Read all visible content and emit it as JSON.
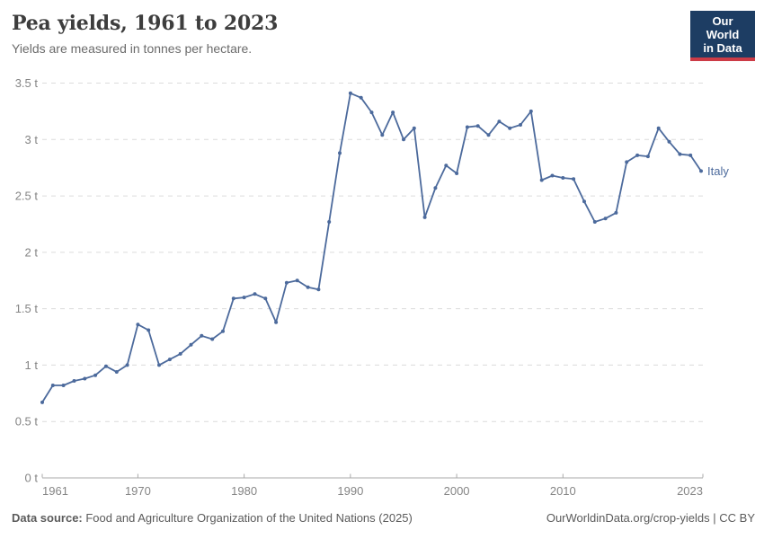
{
  "header": {
    "title": "Pea yields, 1961 to 2023",
    "subtitle": "Yields are measured in tonnes per hectare."
  },
  "logo": {
    "line1": "Our World",
    "line2": "in Data",
    "bg_color": "#1d3d63",
    "accent_color": "#cc3b46"
  },
  "chart_data": {
    "type": "line",
    "title": "Pea yields, 1961 to 2023",
    "ylabel": "tonnes per hectare",
    "unit": "t",
    "xlim": [
      1961,
      2023
    ],
    "ylim": [
      0,
      3.5
    ],
    "grid": "horizontal-dashed",
    "legend_position": "line-end-label",
    "x_ticks": [
      1961,
      1970,
      1980,
      1990,
      2000,
      2010,
      2023
    ],
    "y_ticks": [
      {
        "value": 0,
        "label": "0 t"
      },
      {
        "value": 0.5,
        "label": "0.5 t"
      },
      {
        "value": 1,
        "label": "1 t"
      },
      {
        "value": 1.5,
        "label": "1.5 t"
      },
      {
        "value": 2,
        "label": "2 t"
      },
      {
        "value": 2.5,
        "label": "2.5 t"
      },
      {
        "value": 3,
        "label": "3 t"
      },
      {
        "value": 3.5,
        "label": "3.5 t"
      }
    ],
    "series": [
      {
        "name": "Italy",
        "color": "#4C6A9C",
        "x": [
          1961,
          1962,
          1963,
          1964,
          1965,
          1966,
          1967,
          1968,
          1969,
          1970,
          1971,
          1972,
          1973,
          1974,
          1975,
          1976,
          1977,
          1978,
          1979,
          1980,
          1981,
          1982,
          1983,
          1984,
          1985,
          1986,
          1987,
          1988,
          1989,
          1990,
          1991,
          1992,
          1993,
          1994,
          1995,
          1996,
          1997,
          1998,
          1999,
          2000,
          2001,
          2002,
          2003,
          2004,
          2005,
          2006,
          2007,
          2008,
          2009,
          2010,
          2011,
          2012,
          2013,
          2014,
          2015,
          2016,
          2017,
          2018,
          2019,
          2020,
          2021,
          2022,
          2023
        ],
        "values": [
          0.67,
          0.82,
          0.82,
          0.86,
          0.88,
          0.91,
          0.99,
          0.94,
          1.0,
          1.36,
          1.31,
          1.0,
          1.05,
          1.1,
          1.18,
          1.26,
          1.23,
          1.3,
          1.59,
          1.6,
          1.63,
          1.59,
          1.38,
          1.73,
          1.75,
          1.69,
          1.67,
          2.27,
          2.88,
          3.41,
          3.37,
          3.24,
          3.04,
          3.24,
          3.0,
          3.1,
          2.31,
          2.57,
          2.77,
          2.7,
          3.11,
          3.12,
          3.04,
          3.16,
          3.1,
          3.13,
          3.25,
          2.64,
          2.68,
          2.66,
          2.65,
          2.45,
          2.27,
          2.3,
          2.35,
          2.8,
          2.86,
          2.85,
          3.1,
          2.98,
          2.87,
          2.86,
          2.72
        ]
      }
    ]
  },
  "footer": {
    "datasource_label": "Data source:",
    "datasource_text": " Food and Agriculture Organization of the United Nations (2025)",
    "credit": "OurWorldinData.org/crop-yields | CC BY"
  }
}
